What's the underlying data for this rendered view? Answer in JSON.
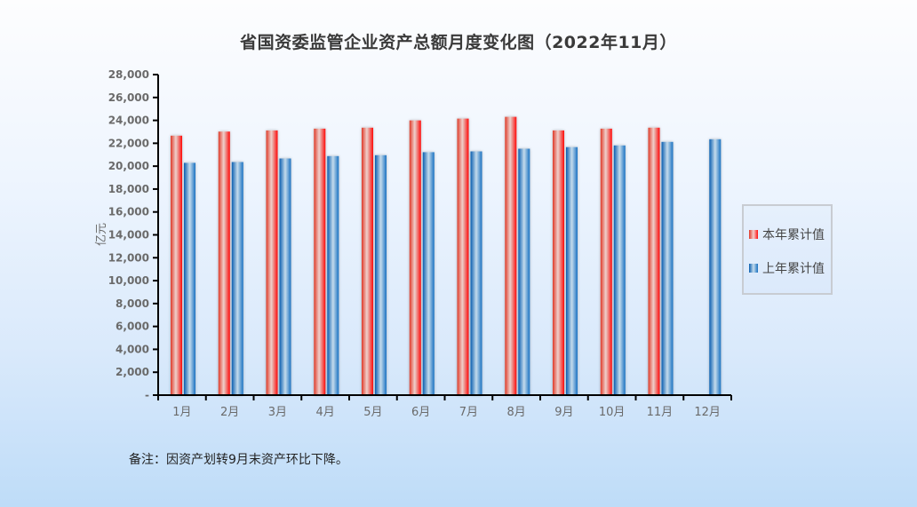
{
  "title": "省国资委监管企业资产总额月度变化图（2022年11月）",
  "note": "备注：因资产划转9月末资产环比下降。",
  "legend": {
    "items": [
      {
        "label": "本年累计值",
        "color": "#e0302a"
      },
      {
        "label": "上年累计值",
        "color": "#1a6cbc"
      }
    ]
  },
  "y_axis": {
    "label": "亿元",
    "ticks": [
      "-",
      "2,000",
      "4,000",
      "6,000",
      "8,000",
      "10,000",
      "12,000",
      "14,000",
      "16,000",
      "18,000",
      "20,000",
      "22,000",
      "24,000",
      "26,000",
      "28,000"
    ]
  },
  "chart_data": {
    "type": "bar",
    "title": "省国资委监管企业资产总额月度变化图（2022年11月）",
    "xlabel": "",
    "ylabel": "亿元",
    "ylim": [
      0,
      28000
    ],
    "ytick_step": 2000,
    "grid": false,
    "legend_position": "right",
    "categories": [
      "1月",
      "2月",
      "3月",
      "4月",
      "5月",
      "6月",
      "7月",
      "8月",
      "9月",
      "10月",
      "11月",
      "12月"
    ],
    "series": [
      {
        "name": "本年累计值",
        "color": "#e0302a",
        "values": [
          22660,
          23020,
          23120,
          23280,
          23360,
          24000,
          24150,
          24310,
          23120,
          23280,
          23360,
          null
        ]
      },
      {
        "name": "上年累计值",
        "color": "#1a6cbc",
        "values": [
          20290,
          20360,
          20670,
          20880,
          20960,
          21220,
          21290,
          21520,
          21660,
          21810,
          22120,
          22350
        ]
      }
    ],
    "annotations": [
      "备注：因资产划转9月末资产环比下降。"
    ]
  }
}
